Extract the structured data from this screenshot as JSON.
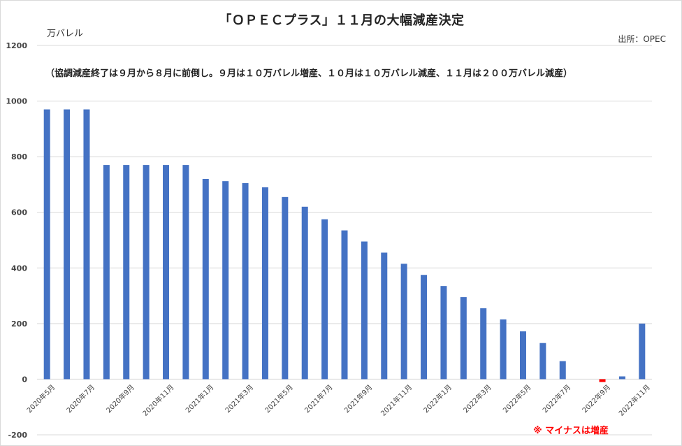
{
  "chart_data": {
    "type": "bar",
    "title": "「ＯＰＥＣプラス」１１月の大幅減産決定",
    "unit_label": "万バレル",
    "source": "出所：OPEC",
    "annotation": "（協調減産終了は９月から８月に前倒し。９月は１０万バレル増産、１０月は１０万バレル減産、１１月は２００万バレル減産）",
    "note": "※ マイナスは増産",
    "ylim": [
      -200,
      1200
    ],
    "yticks": [
      1200,
      1000,
      800,
      600,
      400,
      200,
      0,
      -200
    ],
    "grid": true,
    "bar_color": "#4472c4",
    "negative_color": "#ff0000",
    "categories": [
      "2020年5月",
      "2020年6月",
      "2020年7月",
      "2020年8月",
      "2020年9月",
      "2020年10月",
      "2020年11月",
      "2020年12月",
      "2021年1月",
      "2021年2月",
      "2021年3月",
      "2021年4月",
      "2021年5月",
      "2021年6月",
      "2021年7月",
      "2021年8月",
      "2021年9月",
      "2021年10月",
      "2021年11月",
      "2021年12月",
      "2022年1月",
      "2022年2月",
      "2022年3月",
      "2022年4月",
      "2022年5月",
      "2022年6月",
      "2022年7月",
      "2022年8月",
      "2022年9月",
      "2022年10月",
      "2022年11月"
    ],
    "x_tick_labels": [
      "2020年5月",
      "",
      "2020年7月",
      "",
      "2020年9月",
      "",
      "2020年11月",
      "",
      "2021年1月",
      "",
      "2021年3月",
      "",
      "2021年5月",
      "",
      "2021年7月",
      "",
      "2021年9月",
      "",
      "2021年11月",
      "",
      "2022年1月",
      "",
      "2022年3月",
      "",
      "2022年5月",
      "",
      "2022年7月",
      "",
      "2022年9月",
      "",
      "2022年11月"
    ],
    "values": [
      970,
      970,
      970,
      770,
      770,
      770,
      770,
      770,
      720,
      712,
      705,
      690,
      655,
      620,
      575,
      535,
      495,
      455,
      415,
      375,
      335,
      295,
      255,
      215,
      172,
      130,
      65,
      0,
      -10,
      10,
      200
    ]
  }
}
